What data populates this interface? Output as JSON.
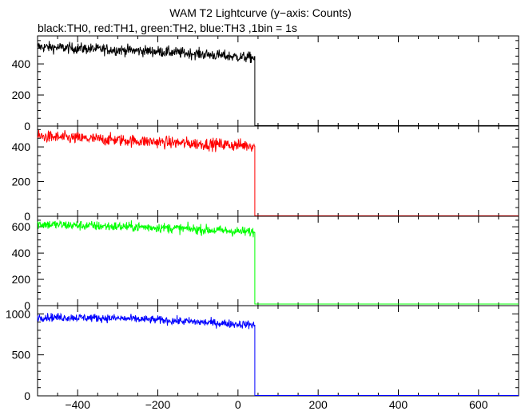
{
  "header": {
    "title": "WAM T2 Lightcurve (y−axis: Counts)",
    "subtitle": "black:TH0, red:TH1, green:TH2, blue:TH3 ,1bin = 1s"
  },
  "chart_data": [
    {
      "type": "line",
      "panel": "TH0",
      "color": "#000000",
      "xlim": [
        -500,
        700
      ],
      "ylim": [
        0,
        580
      ],
      "yticks": [
        0,
        200,
        400
      ],
      "yticklabels": [
        "0",
        "200",
        "400"
      ],
      "yminor_step": 50,
      "x_step_edge": 42,
      "series": [
        {
          "x": [
            -500,
            -400,
            -300,
            -200,
            -100,
            0,
            42,
            42,
            700
          ],
          "y": [
            510,
            500,
            490,
            480,
            465,
            445,
            440,
            3,
            3
          ]
        }
      ],
      "noise": 28
    },
    {
      "type": "line",
      "panel": "TH1",
      "color": "#ff0000",
      "xlim": [
        -500,
        700
      ],
      "ylim": [
        0,
        520
      ],
      "yticks": [
        0,
        200,
        400
      ],
      "yticklabels": [
        "0",
        "200",
        "400"
      ],
      "yminor_step": 50,
      "x_step_edge": 42,
      "series": [
        {
          "x": [
            -500,
            -400,
            -300,
            -200,
            -100,
            0,
            42,
            42,
            700
          ],
          "y": [
            460,
            450,
            440,
            428,
            418,
            410,
            408,
            3,
            3
          ]
        }
      ],
      "noise": 28
    },
    {
      "type": "line",
      "panel": "TH2",
      "color": "#00ff00",
      "xlim": [
        -500,
        700
      ],
      "ylim": [
        0,
        680
      ],
      "yticks": [
        0,
        200,
        400,
        600
      ],
      "yticklabels": [
        "0",
        "200",
        "400",
        "600"
      ],
      "yminor_step": 50,
      "x_step_edge": 42,
      "series": [
        {
          "x": [
            -500,
            -400,
            -300,
            -200,
            -100,
            0,
            42,
            42,
            700
          ],
          "y": [
            620,
            610,
            602,
            595,
            580,
            565,
            560,
            12,
            12
          ]
        }
      ],
      "noise": 30
    },
    {
      "type": "line",
      "panel": "TH3",
      "color": "#0000ff",
      "xlim": [
        -500,
        700
      ],
      "ylim": [
        0,
        1100
      ],
      "yticks": [
        0,
        500,
        1000
      ],
      "yticklabels": [
        "0",
        "500",
        "1000"
      ],
      "yminor_step": 100,
      "x_step_edge": 42,
      "series": [
        {
          "x": [
            -500,
            -400,
            -300,
            -200,
            -100,
            0,
            42,
            42,
            700
          ],
          "y": [
            960,
            955,
            945,
            925,
            900,
            875,
            865,
            5,
            5
          ]
        }
      ],
      "noise": 40
    }
  ],
  "xaxis": {
    "ticks": [
      -400,
      -200,
      0,
      200,
      400,
      600
    ],
    "ticklabels": [
      "−400",
      "−200",
      "0",
      "200",
      "400",
      "600"
    ],
    "minor_step": 50
  }
}
